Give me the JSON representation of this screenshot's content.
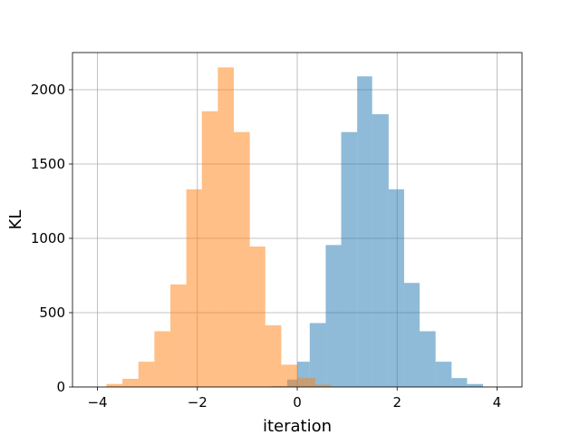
{
  "chart_data": {
    "type": "histogram",
    "title": "",
    "xlabel": "iteration",
    "ylabel": "KL",
    "xlim": [
      -4.5,
      4.5
    ],
    "ylim": [
      0,
      2250
    ],
    "xticks": [
      -4,
      -2,
      0,
      2,
      4
    ],
    "xtick_labels": [
      "−4",
      "−2",
      "0",
      "2",
      "4"
    ],
    "yticks": [
      0,
      500,
      1000,
      1500,
      2000
    ],
    "ytick_labels": [
      "0",
      "500",
      "1000",
      "1500",
      "2000"
    ],
    "grid": true,
    "legend": false,
    "series": [
      {
        "color": "#1f77b4",
        "opacity": 0.5,
        "bins": [
          [
            -0.52,
            -0.2,
            5
          ],
          [
            -0.2,
            0.0,
            50
          ],
          [
            0.0,
            0.25,
            170
          ],
          [
            0.25,
            0.57,
            430
          ],
          [
            0.57,
            0.88,
            955
          ],
          [
            0.88,
            1.2,
            1715
          ],
          [
            1.2,
            1.5,
            2090
          ],
          [
            1.5,
            1.83,
            1835
          ],
          [
            1.83,
            2.14,
            1330
          ],
          [
            2.14,
            2.45,
            700
          ],
          [
            2.45,
            2.77,
            375
          ],
          [
            2.77,
            3.09,
            170
          ],
          [
            3.09,
            3.4,
            60
          ],
          [
            3.4,
            3.72,
            20
          ]
        ]
      },
      {
        "color": "#ff7f0e",
        "opacity": 0.5,
        "bins": [
          [
            -3.82,
            -3.5,
            20
          ],
          [
            -3.5,
            -3.18,
            55
          ],
          [
            -3.18,
            -2.86,
            170
          ],
          [
            -2.86,
            -2.54,
            375
          ],
          [
            -2.54,
            -2.22,
            690
          ],
          [
            -2.22,
            -1.91,
            1330
          ],
          [
            -1.91,
            -1.59,
            1855
          ],
          [
            -1.59,
            -1.27,
            2150
          ],
          [
            -1.27,
            -0.95,
            1715
          ],
          [
            -0.95,
            -0.64,
            945
          ],
          [
            -0.64,
            -0.32,
            415
          ],
          [
            -0.32,
            0.0,
            150
          ],
          [
            0.0,
            0.36,
            60
          ],
          [
            0.36,
            0.68,
            15
          ]
        ]
      }
    ]
  }
}
